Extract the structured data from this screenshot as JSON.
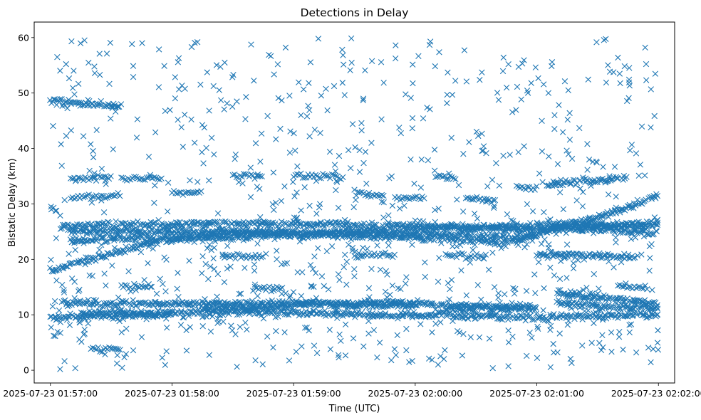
{
  "chart_data": {
    "type": "scatter",
    "title": "Detections in Delay",
    "xlabel": "Time (UTC)",
    "ylabel": "Bistatic Delay (km)",
    "x_ticks": [
      "2025-07-23 01:57:00",
      "2025-07-23 01:58:00",
      "2025-07-23 01:59:00",
      "2025-07-23 02:00:00",
      "2025-07-23 02:01:00",
      "2025-07-23 02:02:00"
    ],
    "y_ticks": [
      "0",
      "10",
      "20",
      "30",
      "40",
      "50",
      "60"
    ],
    "xlim": [
      "2025-07-23 01:56:52",
      "2025-07-23 02:02:08"
    ],
    "ylim": [
      -2.3,
      62.8
    ],
    "grid": false,
    "marker": "x",
    "color": "#1f77b4",
    "series": [
      {
        "tracks": [
          {
            "t": [
              "2025-07-23 01:57:00",
              "2025-07-23 01:57:20",
              "2025-07-23 01:57:35"
            ],
            "y": [
              48.5,
              48.0,
              47.5
            ]
          },
          {
            "t": [
              "2025-07-23 01:57:00",
              "2025-07-23 01:57:15",
              "2025-07-23 01:57:35",
              "2025-07-23 01:57:55",
              "2025-07-23 01:58:30",
              "2025-07-23 02:00:00",
              "2025-07-23 02:00:45",
              "2025-07-23 02:01:00",
              "2025-07-23 02:01:30",
              "2025-07-23 02:02:00"
            ],
            "y": [
              18.0,
              19.5,
              21.5,
              23.5,
              24.8,
              24.0,
              23.0,
              24.5,
              27.5,
              31.5
            ]
          },
          {
            "t": [
              "2025-07-23 01:57:05",
              "2025-07-23 01:58:30",
              "2025-07-23 02:00:00",
              "2025-07-23 02:01:00",
              "2025-07-23 02:02:00"
            ],
            "y": [
              26.0,
              26.5,
              26.0,
              25.5,
              26.5
            ]
          },
          {
            "t": [
              "2025-07-23 01:57:10",
              "2025-07-23 01:58:30",
              "2025-07-23 02:00:00",
              "2025-07-23 02:01:00"
            ],
            "y": [
              25.0,
              25.0,
              24.5,
              24.0
            ]
          },
          {
            "t": [
              "2025-07-23 01:57:10",
              "2025-07-23 01:58:30",
              "2025-07-23 02:00:00",
              "2025-07-23 02:01:00",
              "2025-07-23 02:02:00"
            ],
            "y": [
              23.5,
              24.0,
              25.5,
              26.0,
              24.8
            ]
          },
          {
            "t": [
              "2025-07-23 01:57:05",
              "2025-07-23 01:58:30",
              "2025-07-23 02:00:00",
              "2025-07-23 02:01:00"
            ],
            "y": [
              12.0,
              12.0,
              12.0,
              11.0
            ]
          },
          {
            "t": [
              "2025-07-23 01:57:00",
              "2025-07-23 01:58:30",
              "2025-07-23 02:00:00",
              "2025-07-23 02:01:00",
              "2025-07-23 02:02:00"
            ],
            "y": [
              9.5,
              10.5,
              10.0,
              9.5,
              10.0
            ]
          },
          {
            "t": [
              "2025-07-23 01:57:15",
              "2025-07-23 01:58:00"
            ],
            "y": [
              10.5,
              10.2
            ]
          },
          {
            "t": [
              "2025-07-23 01:58:15",
              "2025-07-23 01:59:00"
            ],
            "y": [
              11.0,
              11.5
            ]
          },
          {
            "t": [
              "2025-07-23 01:59:00",
              "2025-07-23 02:00:00"
            ],
            "y": [
              12.0,
              11.8
            ]
          },
          {
            "t": [
              "2025-07-23 02:00:15",
              "2025-07-23 02:01:00"
            ],
            "y": [
              11.0,
              11.5
            ]
          },
          {
            "t": [
              "2025-07-23 02:01:10",
              "2025-07-23 02:02:00"
            ],
            "y": [
              14.0,
              12.0
            ]
          },
          {
            "t": [
              "2025-07-23 02:01:10",
              "2025-07-23 02:02:00"
            ],
            "y": [
              12.0,
              11.2
            ]
          },
          {
            "t": [
              "2025-07-23 02:01:05",
              "2025-07-23 02:01:45"
            ],
            "y": [
              33.5,
              34.8
            ]
          },
          {
            "t": [
              "2025-07-23 02:01:00",
              "2025-07-23 02:01:50"
            ],
            "y": [
              20.8,
              20.5
            ]
          },
          {
            "t": [
              "2025-07-23 02:01:05",
              "2025-07-23 02:02:00"
            ],
            "y": [
              26.5,
              26.0
            ]
          }
        ],
        "clusters": [
          {
            "t": [
              "2025-07-23 01:57:10",
              "2025-07-23 01:57:30"
            ],
            "y": [
              34.5,
              34.8
            ]
          },
          {
            "t": [
              "2025-07-23 01:57:10",
              "2025-07-23 01:57:35"
            ],
            "y": [
              31.2,
              31.5
            ]
          },
          {
            "t": [
              "2025-07-23 01:57:35",
              "2025-07-23 01:57:55"
            ],
            "y": [
              34.5,
              34.5
            ]
          },
          {
            "t": [
              "2025-07-23 01:58:00",
              "2025-07-23 01:58:15"
            ],
            "y": [
              32.0,
              32.0
            ]
          },
          {
            "t": [
              "2025-07-23 01:58:30",
              "2025-07-23 01:58:45"
            ],
            "y": [
              35.0,
              35.0
            ]
          },
          {
            "t": [
              "2025-07-23 01:59:00",
              "2025-07-23 01:59:25"
            ],
            "y": [
              35.0,
              35.0
            ]
          },
          {
            "t": [
              "2025-07-23 01:59:30",
              "2025-07-23 01:59:45"
            ],
            "y": [
              32.0,
              31.5
            ]
          },
          {
            "t": [
              "2025-07-23 01:59:50",
              "2025-07-23 02:00:05"
            ],
            "y": [
              31.0,
              31.0
            ]
          },
          {
            "t": [
              "2025-07-23 02:00:10",
              "2025-07-23 02:00:20"
            ],
            "y": [
              35.0,
              34.5
            ]
          },
          {
            "t": [
              "2025-07-23 02:00:25",
              "2025-07-23 02:00:40"
            ],
            "y": [
              31.0,
              30.5
            ]
          },
          {
            "t": [
              "2025-07-23 01:57:35",
              "2025-07-23 01:57:50"
            ],
            "y": [
              15.0,
              15.0
            ]
          },
          {
            "t": [
              "2025-07-23 01:58:40",
              "2025-07-23 01:58:55"
            ],
            "y": [
              14.8,
              14.8
            ]
          },
          {
            "t": [
              "2025-07-23 01:57:20",
              "2025-07-23 01:57:35"
            ],
            "y": [
              3.8,
              3.8
            ]
          },
          {
            "t": [
              "2025-07-23 01:58:25",
              "2025-07-23 01:58:45"
            ],
            "y": [
              20.5,
              20.5
            ]
          },
          {
            "t": [
              "2025-07-23 01:59:30",
              "2025-07-23 01:59:50"
            ],
            "y": [
              20.5,
              20.8
            ]
          },
          {
            "t": [
              "2025-07-23 02:00:15",
              "2025-07-23 02:00:35"
            ],
            "y": [
              20.8,
              20.5
            ]
          },
          {
            "t": [
              "2025-07-23 02:00:50",
              "2025-07-23 02:01:00"
            ],
            "y": [
              33.0,
              33.0
            ]
          },
          {
            "t": [
              "2025-07-23 02:01:40",
              "2025-07-23 02:01:55"
            ],
            "y": [
              15.0,
              15.0
            ]
          }
        ],
        "scatter_range": {
          "t": [
            "2025-07-23 01:57:00",
            "2025-07-23 02:02:00"
          ],
          "y": [
            0,
            60
          ]
        }
      }
    ]
  }
}
